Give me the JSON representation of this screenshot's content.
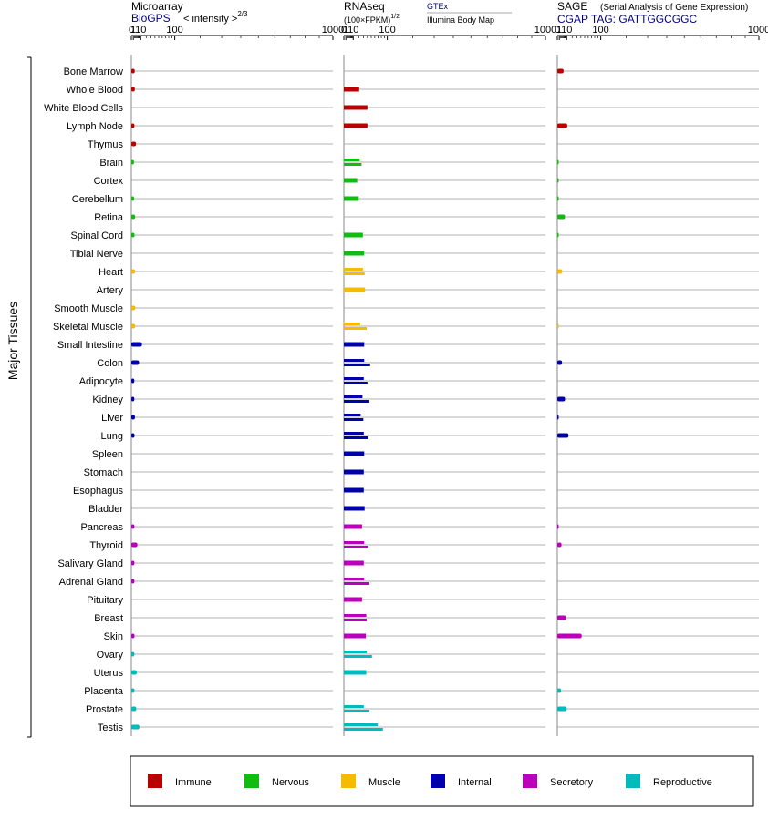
{
  "chart_data": {
    "type": "bar",
    "ylabel": "Major Tissues",
    "scale": "power-2/3",
    "xlim": [
      0,
      1000
    ],
    "x_ticks": [
      0,
      1,
      10,
      100,
      1000
    ],
    "x_tick_labels": [
      "0",
      "1",
      "10",
      "100",
      "1000"
    ],
    "grid": true,
    "categories": [
      "Bone Marrow",
      "Whole Blood",
      "White Blood Cells",
      "Lymph Node",
      "Thymus",
      "Brain",
      "Cortex",
      "Cerebellum",
      "Retina",
      "Spinal Cord",
      "Tibial Nerve",
      "Heart",
      "Artery",
      "Smooth Muscle",
      "Skeletal Muscle",
      "Small Intestine",
      "Colon",
      "Adipocyte",
      "Kidney",
      "Liver",
      "Lung",
      "Spleen",
      "Stomach",
      "Esophagus",
      "Bladder",
      "Pancreas",
      "Thyroid",
      "Salivary Gland",
      "Adrenal Gland",
      "Pituitary",
      "Breast",
      "Skin",
      "Ovary",
      "Uterus",
      "Placenta",
      "Prostate",
      "Testis"
    ],
    "groups": [
      "Immune",
      "Immune",
      "Immune",
      "Immune",
      "Immune",
      "Nervous",
      "Nervous",
      "Nervous",
      "Nervous",
      "Nervous",
      "Nervous",
      "Muscle",
      "Muscle",
      "Muscle",
      "Muscle",
      "Internal",
      "Internal",
      "Internal",
      "Internal",
      "Internal",
      "Internal",
      "Internal",
      "Internal",
      "Internal",
      "Internal",
      "Secretory",
      "Secretory",
      "Secretory",
      "Secretory",
      "Secretory",
      "Secretory",
      "Secretory",
      "Reproductive",
      "Reproductive",
      "Reproductive",
      "Reproductive",
      "Reproductive"
    ],
    "panels": [
      {
        "title": "Microarray",
        "subtitle": "BioGPS",
        "unit": "< intensity >",
        "unit_exp": "2/3",
        "source_right": "",
        "source_right_sub": "",
        "values": [
          2.2,
          2.3,
          null,
          1.9,
          3.5,
          1.5,
          null,
          1.6,
          2.6,
          2.0,
          null,
          2.6,
          null,
          2.8,
          2.6,
          12.0,
          7.5,
          1.8,
          1.8,
          2.4,
          2.0,
          null,
          null,
          null,
          null,
          1.9,
          5.2,
          1.9,
          1.9,
          null,
          null,
          2.0,
          1.8,
          4.5,
          1.9,
          3.8,
          8.0
        ],
        "values_b": null
      },
      {
        "title": "RNAseq",
        "subtitle": "",
        "unit": "(100×FPKM)",
        "unit_exp": "1/2",
        "source_right": "GTEx",
        "source_right_sub": "Illumina Body Map",
        "values": [
          null,
          21,
          null,
          null,
          null,
          22,
          null,
          20,
          null,
          29,
          32,
          29,
          34,
          null,
          23,
          32,
          32,
          31,
          28,
          24,
          31,
          32,
          31,
          31,
          33,
          27,
          32,
          31,
          32,
          27,
          37,
          36,
          38,
          37,
          null,
          31,
          69
        ],
        "values_b": [
          null,
          null,
          40,
          40,
          null,
          26,
          17,
          null,
          null,
          null,
          null,
          33,
          null,
          null,
          38,
          null,
          47,
          40,
          45,
          30,
          42,
          null,
          null,
          null,
          null,
          null,
          42,
          null,
          45,
          null,
          38,
          null,
          52,
          null,
          null,
          45,
          85
        ]
      },
      {
        "title": "SAGE",
        "subtitle": "CGAP TAG: GATTGGCGGC",
        "unit": "(Serial Analysis of Gene Expression)",
        "unit_exp": "",
        "source_right": "",
        "source_right_sub": "",
        "values": [
          5.5,
          null,
          null,
          11.0,
          null,
          0.05,
          0.05,
          0.05,
          7.5,
          0.05,
          null,
          3.7,
          null,
          null,
          0.05,
          null,
          3.5,
          null,
          7.5,
          0.1,
          13.0,
          null,
          null,
          null,
          null,
          0.1,
          3.0,
          null,
          null,
          null,
          9.0,
          42,
          null,
          null,
          2.5,
          10.0,
          null
        ],
        "values_b": null
      }
    ],
    "legend": [
      {
        "name": "Immune",
        "color": "#bb0000"
      },
      {
        "name": "Nervous",
        "color": "#11bb11"
      },
      {
        "name": "Muscle",
        "color": "#f5bb00"
      },
      {
        "name": "Internal",
        "color": "#0000aa"
      },
      {
        "name": "Secretory",
        "color": "#bb00bb"
      },
      {
        "name": "Reproductive",
        "color": "#00bbbb"
      }
    ],
    "legend_placement": "bottom"
  },
  "colors": {
    "Immune": "#bb0000",
    "Nervous": "#11bb11",
    "Muscle": "#f5bb00",
    "Internal": "#0000aa",
    "Secretory": "#bb00bb",
    "Reproductive": "#00bbbb",
    "link": "#000088"
  }
}
